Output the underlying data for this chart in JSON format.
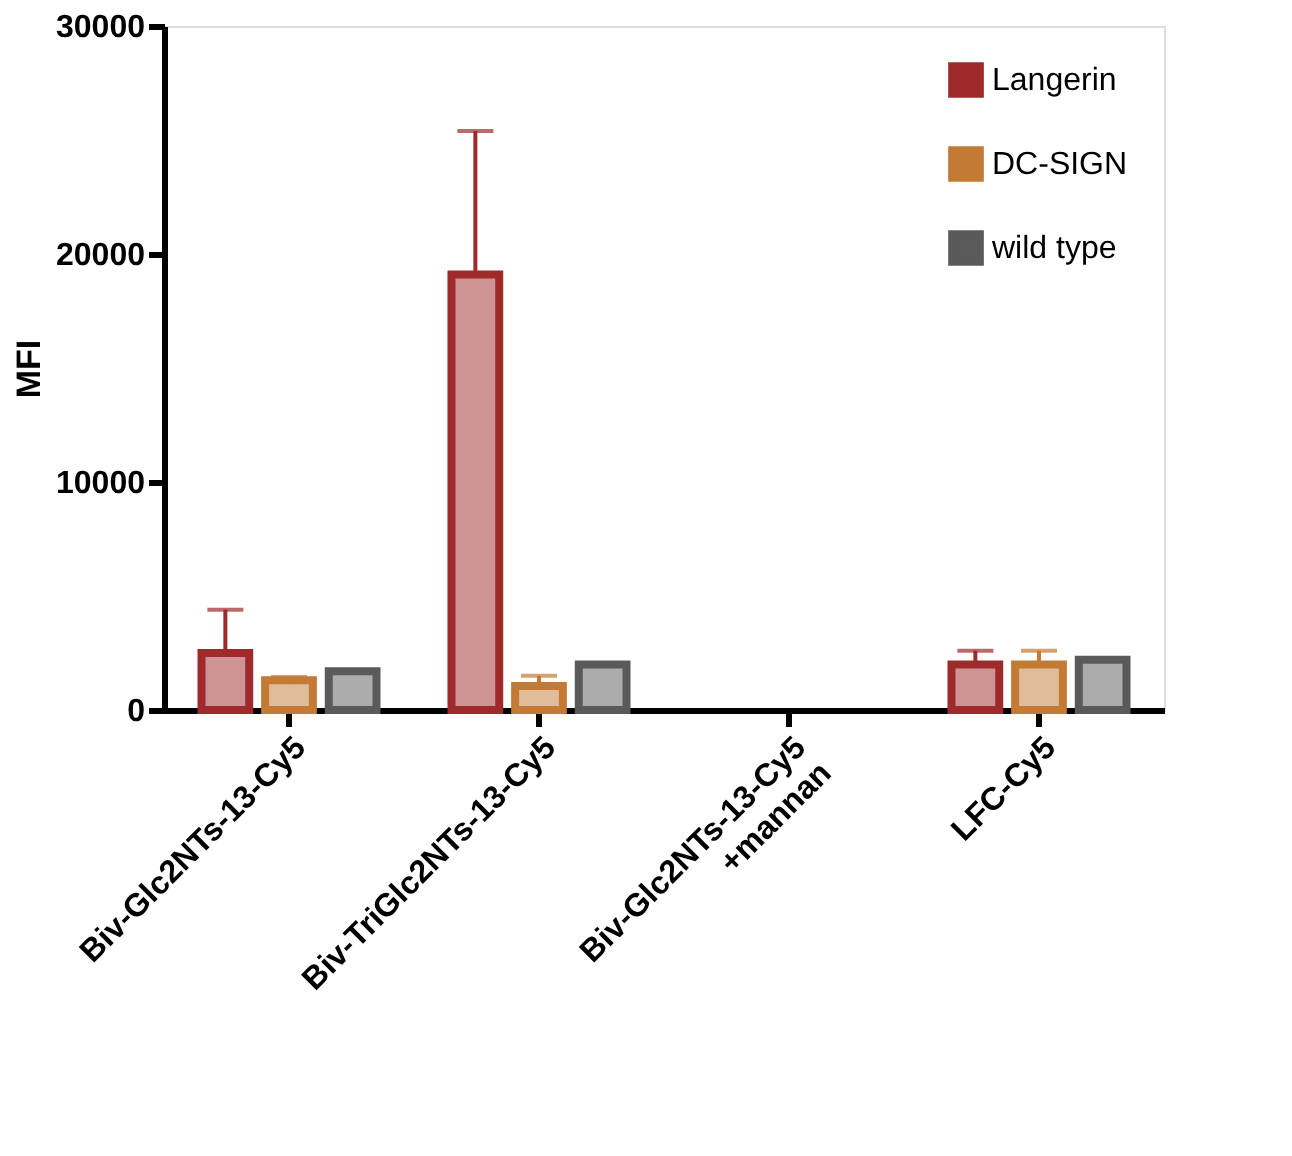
{
  "chart_data": {
    "type": "bar",
    "ylabel": "MFI",
    "categories": [
      "Biv-Glc2NTs-13-Cy5",
      "Biv-TriGlc2NTs-13-Cy5",
      "Biv-Glc2NTs-13-Cy5\n+mannan",
      "LFC-Cy5"
    ],
    "series": [
      {
        "name": "Langerin",
        "color": "#9e2a2b",
        "values": [
          2500,
          19100,
          null,
          2000
        ],
        "errors": [
          [
            2500,
            4400
          ],
          [
            19100,
            25400
          ],
          null,
          [
            2000,
            2600
          ]
        ]
      },
      {
        "name": "DC-SIGN",
        "color": "#c27a35",
        "values": [
          1300,
          1050,
          null,
          2000
        ],
        "errors": [
          [
            1300,
            1450
          ],
          [
            1050,
            1500
          ],
          null,
          [
            2000,
            2600
          ]
        ]
      },
      {
        "name": "wild type",
        "color": "#5a5a5a",
        "values": [
          1700,
          2000,
          null,
          2200
        ],
        "errors": [
          null,
          null,
          null,
          null
        ]
      }
    ],
    "ylim": [
      0,
      30000
    ],
    "yticks": [
      0,
      10000,
      20000,
      30000
    ],
    "grid": false,
    "legend": "top right"
  }
}
